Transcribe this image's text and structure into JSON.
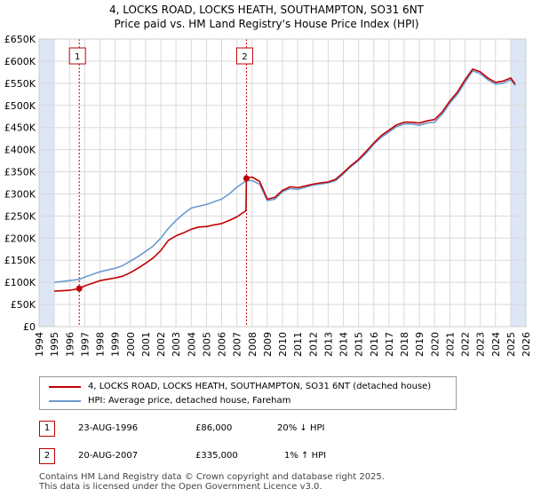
{
  "title_line1": "4, LOCKS ROAD, LOCKS HEATH, SOUTHAMPTON, SO31 6NT",
  "title_line2": "Price paid vs. HM Land Registry's House Price Index (HPI)",
  "colors": {
    "property": "#c00000",
    "hpi": "#6b9bd1",
    "shade": "#dde6f5",
    "grid": "#d9d9d9"
  },
  "legend": {
    "property_label": "4, LOCKS ROAD, LOCKS HEATH, SOUTHAMPTON, SO31 6NT (detached house)",
    "hpi_label": "HPI: Average price, detached house, Fareham"
  },
  "transactions": [
    {
      "num": "1",
      "date": "23-AUG-1996",
      "price": "£86,000",
      "hpi_change": "20% ↓ HPI"
    },
    {
      "num": "2",
      "date": "20-AUG-2007",
      "price": "£335,000",
      "hpi_change": "1% ↑ HPI"
    }
  ],
  "footer": {
    "line1": "Contains HM Land Registry data © Crown copyright and database right 2025.",
    "line2": "This data is licensed under the Open Government Licence v3.0."
  },
  "chart_data": {
    "type": "line",
    "xlabel": "",
    "ylabel": "",
    "xlim": [
      1994,
      2026
    ],
    "ylim": [
      0,
      650000
    ],
    "grid": true,
    "y_ticks": [
      0,
      50000,
      100000,
      150000,
      200000,
      250000,
      300000,
      350000,
      400000,
      450000,
      500000,
      550000,
      600000,
      650000
    ],
    "y_tick_labels": [
      "£0",
      "£50K",
      "£100K",
      "£150K",
      "£200K",
      "£250K",
      "£300K",
      "£350K",
      "£400K",
      "£450K",
      "£500K",
      "£550K",
      "£600K",
      "£650K"
    ],
    "x_ticks": [
      1994,
      1995,
      1996,
      1997,
      1998,
      1999,
      2000,
      2001,
      2002,
      2003,
      2004,
      2005,
      2006,
      2007,
      2008,
      2009,
      2010,
      2011,
      2012,
      2013,
      2014,
      2015,
      2016,
      2017,
      2018,
      2019,
      2020,
      2021,
      2022,
      2023,
      2024,
      2025,
      2026
    ],
    "shaded_ranges": [
      [
        1994,
        1995
      ],
      [
        2025,
        2026
      ]
    ],
    "markers": [
      {
        "label": "1",
        "x": 1996.64,
        "y": 86000
      },
      {
        "label": "2",
        "x": 2007.63,
        "y": 335000
      }
    ],
    "series": [
      {
        "name": "HPI: Average price, detached house, Fareham",
        "color": "#6b9bd1",
        "x": [
          1995,
          1995.5,
          1996,
          1996.64,
          1997,
          1997.5,
          1998,
          1998.5,
          1999,
          1999.5,
          2000,
          2000.5,
          2001,
          2001.5,
          2002,
          2002.5,
          2003,
          2003.5,
          2004,
          2004.5,
          2005,
          2005.5,
          2006,
          2006.5,
          2007,
          2007.63,
          2008,
          2008.5,
          2009,
          2009.5,
          2010,
          2010.5,
          2011,
          2011.5,
          2012,
          2012.5,
          2013,
          2013.5,
          2014,
          2014.5,
          2015,
          2015.5,
          2016,
          2016.5,
          2017,
          2017.5,
          2018,
          2018.5,
          2019,
          2019.5,
          2020,
          2020.5,
          2021,
          2021.5,
          2022,
          2022.5,
          2023,
          2023.5,
          2024,
          2024.5,
          2025,
          2025.3
        ],
        "y": [
          100000,
          102000,
          104000,
          107000,
          112000,
          118000,
          124000,
          128000,
          132000,
          138000,
          148000,
          158000,
          170000,
          182000,
          200000,
          222000,
          240000,
          255000,
          268000,
          272000,
          276000,
          282000,
          288000,
          300000,
          315000,
          330000,
          330000,
          322000,
          285000,
          288000,
          305000,
          312000,
          310000,
          315000,
          320000,
          322000,
          325000,
          330000,
          345000,
          362000,
          375000,
          392000,
          412000,
          428000,
          440000,
          452000,
          458000,
          458000,
          455000,
          460000,
          462000,
          480000,
          505000,
          525000,
          552000,
          578000,
          572000,
          558000,
          548000,
          550000,
          558000,
          545000
        ]
      },
      {
        "name": "4, LOCKS ROAD, LOCKS HEATH, SOUTHAMPTON, SO31 6NT (detached house)",
        "color": "#c00000",
        "x": [
          1995,
          1995.5,
          1996,
          1996.64,
          1997,
          1997.5,
          1998,
          1998.5,
          1999,
          1999.5,
          2000,
          2000.5,
          2001,
          2001.5,
          2002,
          2002.5,
          2003,
          2003.5,
          2004,
          2004.5,
          2005,
          2005.5,
          2006,
          2006.5,
          2007,
          2007.6,
          2007.63,
          2008,
          2008.5,
          2009,
          2009.5,
          2010,
          2010.5,
          2011,
          2011.5,
          2012,
          2012.5,
          2013,
          2013.5,
          2014,
          2014.5,
          2015,
          2015.5,
          2016,
          2016.5,
          2017,
          2017.5,
          2018,
          2018.5,
          2019,
          2019.5,
          2020,
          2020.5,
          2021,
          2021.5,
          2022,
          2022.5,
          2023,
          2023.5,
          2024,
          2024.5,
          2025,
          2025.3
        ],
        "y": [
          80000,
          81000,
          82000,
          86000,
          92000,
          98000,
          104000,
          107000,
          110000,
          114000,
          122000,
          132000,
          143000,
          155000,
          172000,
          195000,
          205000,
          212000,
          220000,
          225000,
          226000,
          230000,
          233000,
          240000,
          248000,
          262000,
          335000,
          338000,
          328000,
          288000,
          292000,
          308000,
          316000,
          314000,
          318000,
          322000,
          325000,
          327000,
          333000,
          348000,
          364000,
          378000,
          396000,
          415000,
          432000,
          444000,
          456000,
          462000,
          462000,
          460000,
          465000,
          468000,
          485000,
          510000,
          530000,
          558000,
          582000,
          576000,
          562000,
          552000,
          555000,
          562000,
          548000
        ]
      }
    ]
  }
}
